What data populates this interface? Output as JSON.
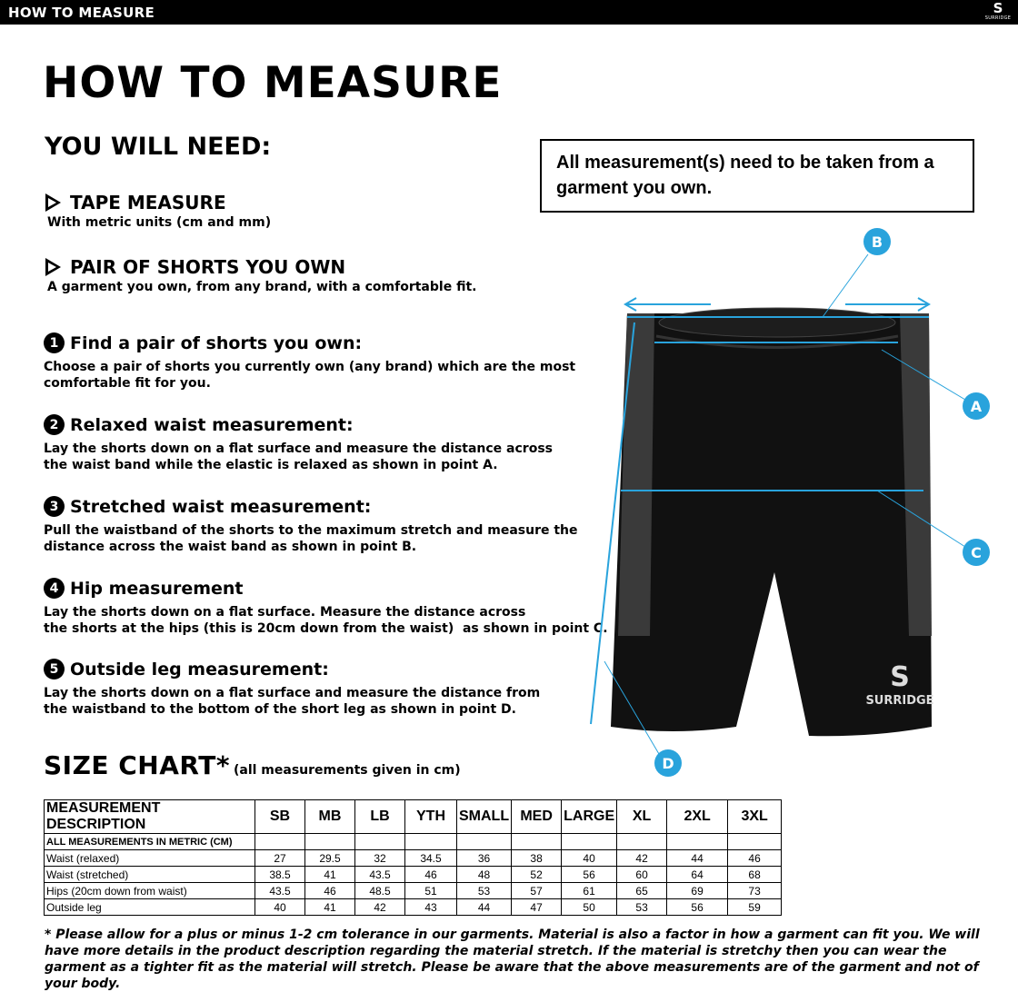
{
  "header": {
    "title": "HOW TO MEASURE",
    "logo_text": "SURRIDGE"
  },
  "page_title": "HOW TO MEASURE",
  "you_will_need": {
    "heading": "YOU WILL NEED:",
    "items": [
      {
        "title": "TAPE MEASURE",
        "desc": "With metric units (cm and mm)"
      },
      {
        "title": "PAIR OF SHORTS YOU OWN",
        "desc": "A garment you own, from any brand, with a comfortable fit."
      }
    ]
  },
  "notice": "All measurement(s) need to be taken from a garment you own.",
  "steps": [
    {
      "num": "1",
      "title": "Find a pair of shorts you own:",
      "text": "Choose a pair of shorts you currently own (any brand) which are the most\ncomfortable fit for you."
    },
    {
      "num": "2",
      "title": "Relaxed waist measurement:",
      "text": "Lay the shorts down on a flat surface and measure the distance across\nthe waist band while the elastic is relaxed as shown in point A."
    },
    {
      "num": "3",
      "title": "Stretched waist measurement:",
      "text": "Pull the waistband of the shorts to the maximum stretch and measure the\ndistance across the waist band as shown in point B."
    },
    {
      "num": "4",
      "title": "Hip measurement",
      "text": "Lay the shorts down on a flat surface. Measure the distance across\nthe shorts at the hips (this is 20cm down from the waist)  as shown in point C."
    },
    {
      "num": "5",
      "title": "Outside leg measurement:",
      "text": "Lay the shorts down on a flat surface and measure the distance from\nthe waistband to the bottom of the short leg as shown in point D."
    }
  ],
  "diagram": {
    "labels": [
      "A",
      "B",
      "C",
      "D"
    ],
    "accent": "#29a3dc",
    "brand": "SURRIDGE"
  },
  "size_chart": {
    "title": "SIZE CHART*",
    "note": "(all measurements given in cm)",
    "header": [
      "MEASUREMENT DESCRIPTION",
      "SB",
      "MB",
      "LB",
      "YTH",
      "SMALL",
      "MED",
      "LARGE",
      "XL",
      "2XL",
      "3XL"
    ],
    "metric_row": "ALL MEASUREMENTS IN METRIC (CM)",
    "rows": [
      [
        "Waist (relaxed)",
        "27",
        "29.5",
        "32",
        "34.5",
        "36",
        "38",
        "40",
        "42",
        "44",
        "46"
      ],
      [
        "Waist (stretched)",
        "38.5",
        "41",
        "43.5",
        "46",
        "48",
        "52",
        "56",
        "60",
        "64",
        "68"
      ],
      [
        "Hips (20cm down from waist)",
        "43.5",
        "46",
        "48.5",
        "51",
        "53",
        "57",
        "61",
        "65",
        "69",
        "73"
      ],
      [
        "Outside leg",
        "40",
        "41",
        "42",
        "43",
        "44",
        "47",
        "50",
        "53",
        "56",
        "59"
      ]
    ]
  },
  "footnote": "* Please allow for a plus or minus 1-2 cm tolerance in our garments. Material is also a factor in how a garment can fit you. We will have more details in the product description regarding the material stretch.  If the material is stretchy then you can wear the garment as a tighter fit as the material will stretch.  Please be aware that the above measurements are of the garment and not of your body."
}
